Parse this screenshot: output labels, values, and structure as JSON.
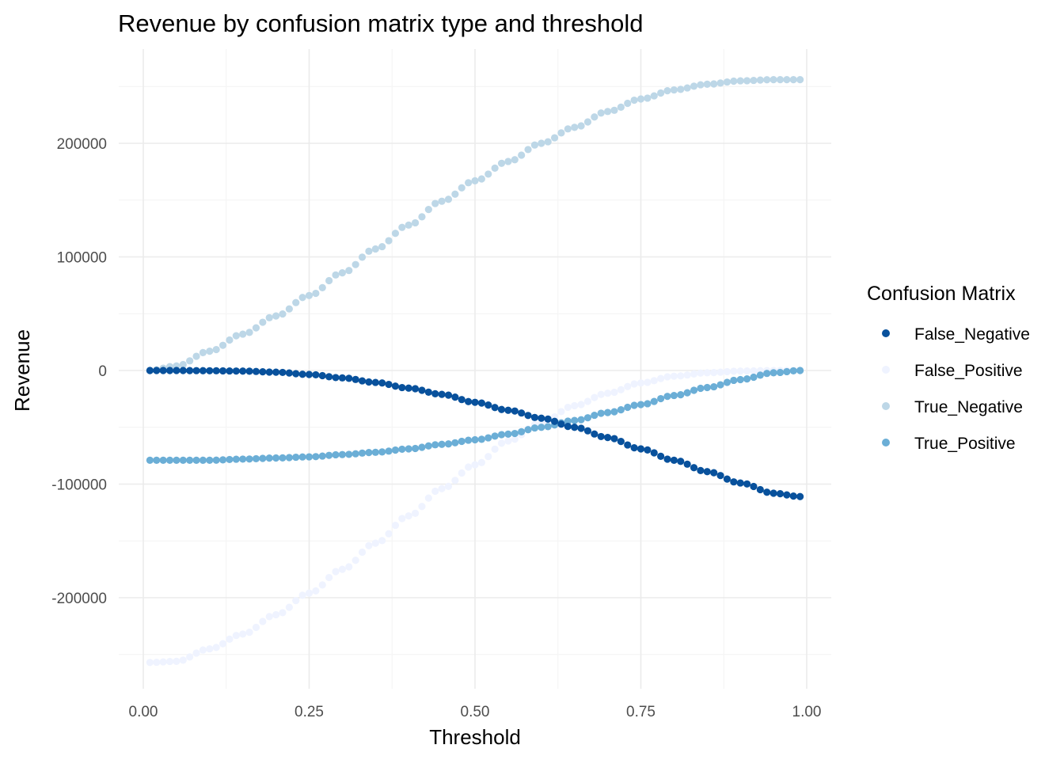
{
  "chart_data": {
    "type": "scatter",
    "title": "Revenue by confusion matrix type and threshold",
    "xlabel": "Threshold",
    "ylabel": "Revenue",
    "xlim": [
      0.0,
      1.0
    ],
    "ylim": [
      -260000,
      260000
    ],
    "x_ticks": [
      0.0,
      0.25,
      0.5,
      0.75,
      1.0
    ],
    "x_tick_labels": [
      "0.00",
      "0.25",
      "0.50",
      "0.75",
      "1.00"
    ],
    "y_ticks": [
      -200000,
      -100000,
      0,
      100000,
      200000
    ],
    "y_tick_labels": [
      "-200000",
      "-100000",
      "0",
      "100000",
      "200000"
    ],
    "grid": true,
    "legend_title": "Confusion Matrix",
    "legend_position": "right",
    "x": [
      0.01,
      0.05,
      0.1,
      0.15,
      0.2,
      0.25,
      0.3,
      0.35,
      0.4,
      0.45,
      0.5,
      0.55,
      0.6,
      0.65,
      0.7,
      0.75,
      0.8,
      0.85,
      0.9,
      0.95,
      0.99
    ],
    "series": [
      {
        "name": "False_Negative",
        "color": "#08519c",
        "values": [
          0,
          0,
          -200,
          -500,
          -1500,
          -3500,
          -6500,
          -10500,
          -15500,
          -21000,
          -28000,
          -35000,
          -42000,
          -50000,
          -59000,
          -69000,
          -79000,
          -89000,
          -99000,
          -108000,
          -111000
        ]
      },
      {
        "name": "False_Positive",
        "color": "#eff3ff",
        "values": [
          -257000,
          -256000,
          -245000,
          -232000,
          -215000,
          -196000,
          -175000,
          -152000,
          -128000,
          -104000,
          -83000,
          -62000,
          -46000,
          -31000,
          -20000,
          -11000,
          -5000,
          -2000,
          -500,
          0,
          0
        ]
      },
      {
        "name": "True_Negative",
        "color": "#bdd7e7",
        "values": [
          0,
          4000,
          17000,
          32000,
          48000,
          66000,
          86000,
          107000,
          128000,
          149000,
          167000,
          184000,
          200000,
          214000,
          228000,
          239000,
          247000,
          252000,
          255000,
          256000,
          256000
        ]
      },
      {
        "name": "True_Positive",
        "color": "#6baed6",
        "values": [
          -79000,
          -79000,
          -79000,
          -78000,
          -77000,
          -76000,
          -74000,
          -72000,
          -69000,
          -65000,
          -61000,
          -56000,
          -50000,
          -44000,
          -37000,
          -30000,
          -22000,
          -15000,
          -8000,
          -2000,
          0
        ]
      }
    ]
  }
}
